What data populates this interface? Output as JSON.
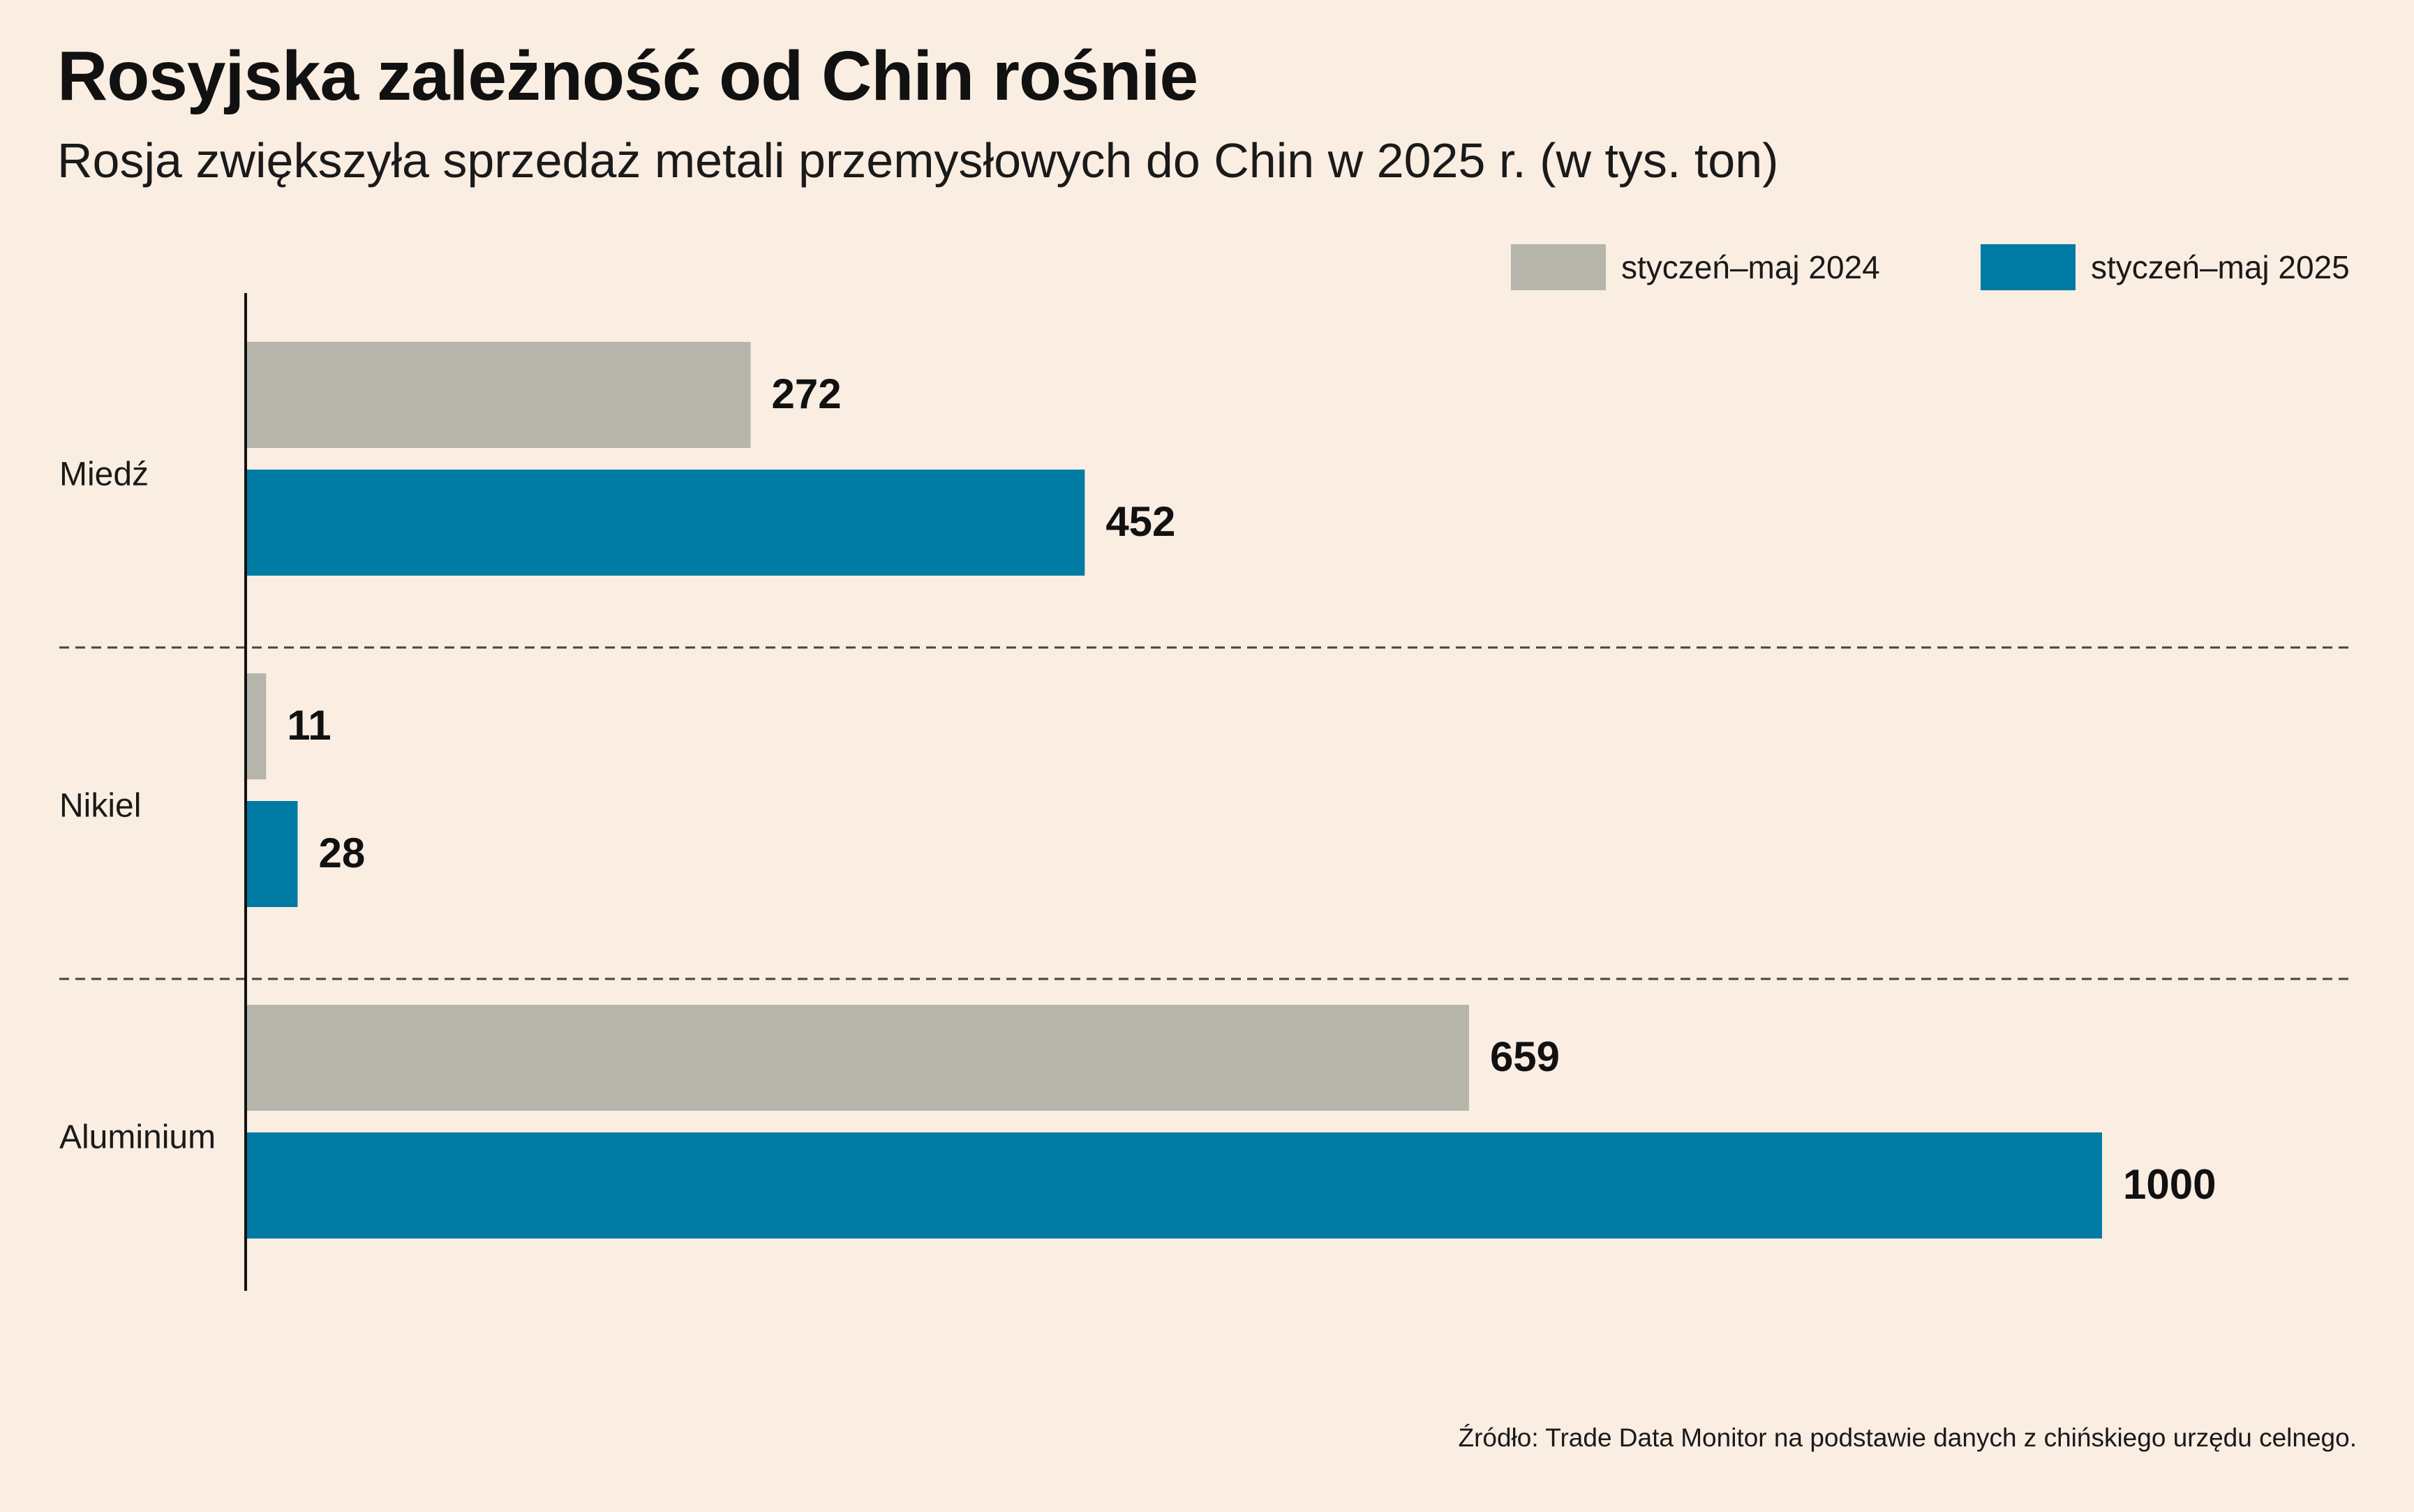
{
  "title": "Rosyjska zależność od Chin rośnie",
  "subtitle": "Rosja zwiększyła sprzedaż metali przemysłowych do Chin w 2025 r. (w tys. ton)",
  "source": "Źródło: Trade Data Monitor na podstawie danych z chińskiego urzędu celnego.",
  "colors": {
    "background": "#FAEDE1",
    "series_2024": "#B6B5AB",
    "series_2025": "#007BA3",
    "axis": "#111111",
    "separator": "#444444"
  },
  "legend": [
    {
      "label": "styczeń–maj 2024",
      "color": "#B6B5AB"
    },
    {
      "label": "styczeń–maj 2025",
      "color": "#007BA3"
    }
  ],
  "chart_data": {
    "type": "bar",
    "orientation": "horizontal",
    "categories": [
      "Miedź",
      "Nikiel",
      "Aluminium"
    ],
    "series": [
      {
        "name": "styczeń–maj 2024",
        "values": [
          272,
          11,
          659
        ]
      },
      {
        "name": "styczeń–maj 2025",
        "values": [
          452,
          28,
          1000
        ]
      }
    ],
    "xlim": [
      0,
      1000
    ],
    "grid": false,
    "legend_position": "top-right",
    "data_labels": true
  }
}
